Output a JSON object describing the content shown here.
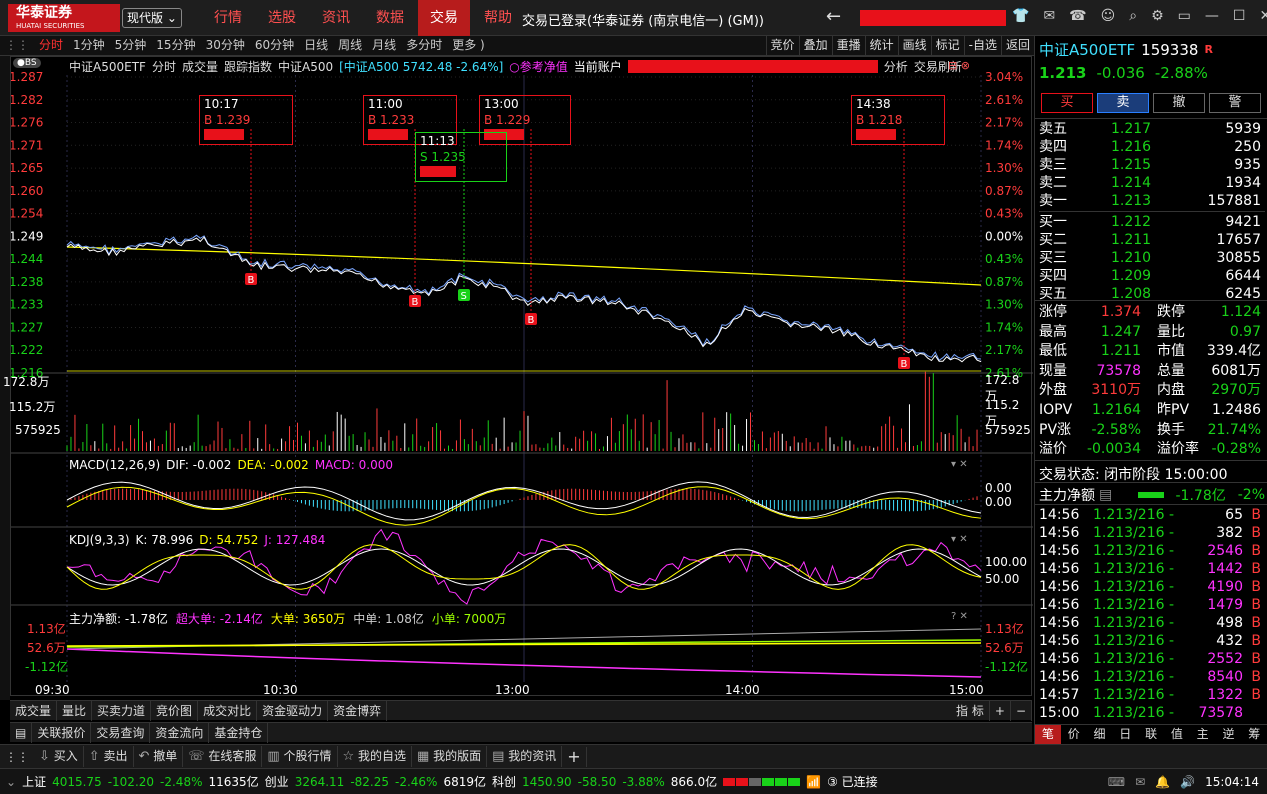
{
  "app": {
    "logo": "华泰证券",
    "logo_en": "HUATAI SECURITIES",
    "version": "现代版",
    "login": "交易已登录(华泰证券 (南京电信一) (GM))"
  },
  "menu": [
    "行情",
    "选股",
    "资讯",
    "数据",
    "交易",
    "帮助"
  ],
  "periods": [
    "分时",
    "1分钟",
    "5分钟",
    "15分钟",
    "30分钟",
    "60分钟",
    "日线",
    "周线",
    "月线",
    "多分时",
    "更多 )"
  ],
  "right_btns": [
    "竞价",
    "叠加",
    "重播",
    "统计",
    "画线",
    "标记",
    "-自选",
    "返回"
  ],
  "header": {
    "name": "中证A500ETF",
    "a": "分时",
    "b": "成交量",
    "c": "跟踪指数",
    "idx": "中证A500",
    "idxval": "[中证A500 5742.48 -2.64%]",
    "ref": "○参考净值",
    "acct": "当前账户",
    "an": "分析",
    "rf": "交易刷新"
  },
  "yleft": [
    "1.287",
    "1.282",
    "1.276",
    "1.271",
    "1.265",
    "1.260",
    "1.254",
    "1.249",
    "1.244",
    "1.238",
    "1.233",
    "1.227",
    "1.222",
    "1.216"
  ],
  "yright": [
    "3.04%",
    "2.61%",
    "2.17%",
    "1.74%",
    "1.30%",
    "0.87%",
    "0.43%",
    "0.00%",
    "0.43%",
    "0.87%",
    "1.30%",
    "1.74%",
    "2.17%",
    "2.61%"
  ],
  "vol": {
    "l1": "172.8万",
    "l2": "115.2万",
    "l3": "575925"
  },
  "trades": [
    {
      "t": "10:17",
      "s": "B 1.239"
    },
    {
      "t": "11:00",
      "s": "B 1.233"
    },
    {
      "t": "13:00",
      "s": "B 1.229"
    },
    {
      "t": "11:13",
      "s": "S 1.235"
    },
    {
      "t": "14:38",
      "s": "B 1.218"
    }
  ],
  "macd": {
    "title": "MACD(12,26,9)",
    "dif": "DIF: -0.002",
    "dea": "DEA: -0.002",
    "macd": "MACD: 0.000",
    "r1": "0.00",
    "r2": "0.00"
  },
  "kdj": {
    "title": "KDJ(9,3,3)",
    "k": "K: 78.996",
    "d": "D: 54.752",
    "j": "J: 127.484",
    "r1": "100.00",
    "r2": "50.00"
  },
  "flow": {
    "title": "主力净额: -1.78亿",
    "super": "超大单: -2.14亿",
    "big": "大单: 3650万",
    "mid": "中单: 1.08亿",
    "small": "小单: 7000万",
    "l1": "1.13亿",
    "l2": "52.6万",
    "l3": "-1.12亿"
  },
  "xaxis": [
    "09:30",
    "10:30",
    "13:00",
    "14:00",
    "15:00"
  ],
  "bottom_tabs": [
    "成交量",
    "量比",
    "买卖力道",
    "竞价图",
    "成交对比",
    "资金驱动力",
    "资金博弈"
  ],
  "bottom_tabs2": [
    "关联报价",
    "交易查询",
    "资金流向",
    "基金持仓"
  ],
  "idx_btn": "指 标",
  "toolbar": [
    "买入",
    "卖出",
    "撤单",
    "在线客服",
    "个股行情",
    "我的自选",
    "我的版面",
    "我的资讯"
  ],
  "quote": {
    "name": "中证A500ETF",
    "code": "159338",
    "flag": "R",
    "price": "1.213",
    "chg": "-0.036",
    "pct": "-2.88%",
    "btns": [
      "买",
      "卖",
      "撤",
      "警"
    ],
    "asks": [
      [
        "卖五",
        "1.217",
        "5939"
      ],
      [
        "卖四",
        "1.216",
        "250"
      ],
      [
        "卖三",
        "1.215",
        "935"
      ],
      [
        "卖二",
        "1.214",
        "1934"
      ],
      [
        "卖一",
        "1.213",
        "157881"
      ]
    ],
    "bids": [
      [
        "买一",
        "1.212",
        "9421"
      ],
      [
        "买二",
        "1.211",
        "17657"
      ],
      [
        "买三",
        "1.210",
        "30855"
      ],
      [
        "买四",
        "1.209",
        "6644"
      ],
      [
        "买五",
        "1.208",
        "6245"
      ]
    ],
    "stats": [
      [
        "涨停",
        "1.374",
        "跌停",
        "1.124"
      ],
      [
        "最高",
        "1.247",
        "量比",
        "0.97"
      ],
      [
        "最低",
        "1.211",
        "市值",
        "339.4亿"
      ],
      [
        "现量",
        "73578",
        "总量",
        "6081万"
      ],
      [
        "外盘",
        "3110万",
        "内盘",
        "2970万"
      ],
      [
        "IOPV",
        "1.2164",
        "昨PV",
        "1.2486"
      ],
      [
        "PV涨",
        "-2.58%",
        "换手",
        "21.74%"
      ],
      [
        "溢价",
        "-0.0034",
        "溢价率",
        "-0.28%"
      ]
    ],
    "state": "交易状态: 闭市阶段 15:00:00",
    "flow": "主力净额",
    "flowv": "-1.78亿",
    "flowp": "-2%",
    "ticks": [
      [
        "14:56",
        "1.213/216 -",
        "65",
        "B"
      ],
      [
        "14:56",
        "1.213/216 -",
        "382",
        "B"
      ],
      [
        "14:56",
        "1.213/216 -",
        "2546",
        "B"
      ],
      [
        "14:56",
        "1.213/216 -",
        "1442",
        "B"
      ],
      [
        "14:56",
        "1.213/216 -",
        "4190",
        "B"
      ],
      [
        "14:56",
        "1.213/216 -",
        "1479",
        "B"
      ],
      [
        "14:56",
        "1.213/216 -",
        "498",
        "B"
      ],
      [
        "14:56",
        "1.213/216 -",
        "432",
        "B"
      ],
      [
        "14:56",
        "1.213/216 -",
        "2552",
        "B"
      ],
      [
        "14:56",
        "1.213/216 -",
        "8540",
        "B"
      ],
      [
        "14:57",
        "1.213/216 -",
        "1322",
        "B"
      ],
      [
        "15:00",
        "1.213/216 -",
        "73578",
        ""
      ]
    ],
    "rtabs": [
      "笔",
      "价",
      "细",
      "日",
      "联",
      "值",
      "主",
      "逆",
      "筹"
    ]
  },
  "status": {
    "sh": "上证",
    "shv": "4015.75",
    "shc": "-102.20",
    "shp": "-2.48%",
    "sha": "11635亿",
    "cy": "创业",
    "cyv": "3264.11",
    "cyc": "-82.25",
    "cyp": "-2.46%",
    "cya": "6819亿",
    "kc": "科创",
    "kcv": "1450.90",
    "kcc": "-58.50",
    "kcp": "-3.88%",
    "kca": "866.0亿",
    "conn": "已连接",
    "time": "15:04:14"
  },
  "colors": {
    "up": "#ff3b3b",
    "down": "#19d219",
    "accent": "#b71c1c"
  }
}
